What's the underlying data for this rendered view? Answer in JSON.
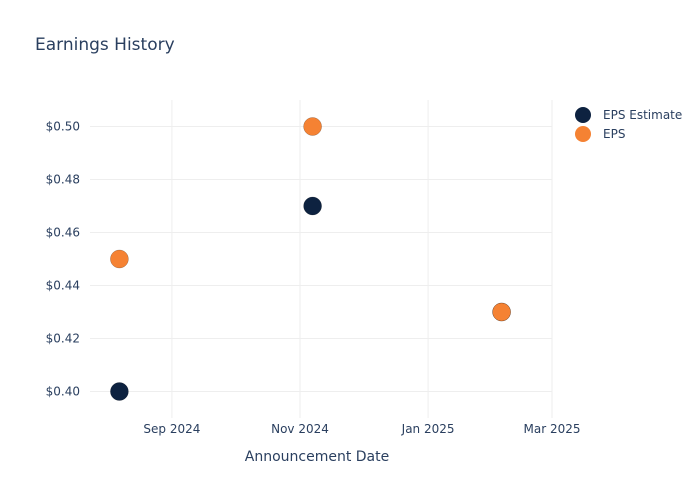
{
  "chart_data": {
    "type": "scatter",
    "title": "Earnings History",
    "xlabel": "Announcement Date",
    "ylabel": "",
    "x_axis_type": "date",
    "xlim": [
      "2024-07-24",
      "2025-03-01"
    ],
    "ylim": [
      0.39,
      0.51
    ],
    "x_ticks": [
      {
        "value": "2024-09-01",
        "label": "Sep 2024"
      },
      {
        "value": "2024-11-01",
        "label": "Nov 2024"
      },
      {
        "value": "2025-01-01",
        "label": "Jan 2025"
      },
      {
        "value": "2025-03-01",
        "label": "Mar 2025"
      }
    ],
    "y_ticks": [
      {
        "value": 0.4,
        "label": "$0.40"
      },
      {
        "value": 0.42,
        "label": "$0.42"
      },
      {
        "value": 0.44,
        "label": "$0.44"
      },
      {
        "value": 0.46,
        "label": "$0.46"
      },
      {
        "value": 0.48,
        "label": "$0.48"
      },
      {
        "value": 0.5,
        "label": "$0.50"
      }
    ],
    "grid": true,
    "legend_position": "top-right",
    "series": [
      {
        "name": "EPS Estimate",
        "color": "#0d2240",
        "points": [
          {
            "x": "2024-08-07",
            "y": 0.4
          },
          {
            "x": "2024-11-07",
            "y": 0.47
          },
          {
            "x": "2025-02-05",
            "y": 0.43
          }
        ]
      },
      {
        "name": "EPS",
        "color": "#f58233",
        "points": [
          {
            "x": "2024-08-07",
            "y": 0.45
          },
          {
            "x": "2024-11-07",
            "y": 0.5
          },
          {
            "x": "2025-02-05",
            "y": 0.43
          }
        ]
      }
    ]
  }
}
